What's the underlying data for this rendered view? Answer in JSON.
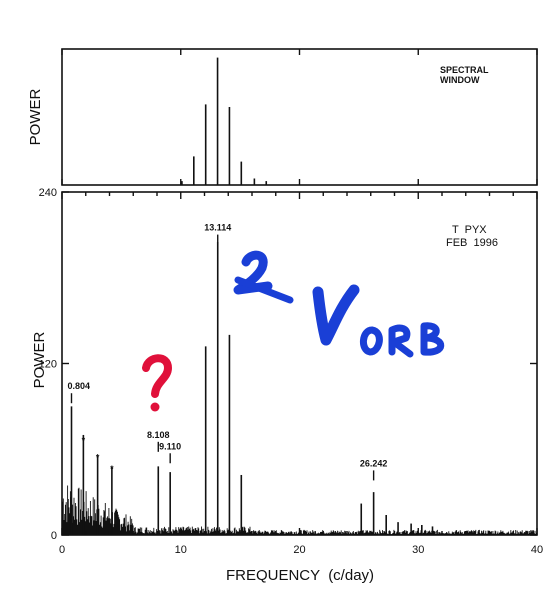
{
  "chart_data": [
    {
      "type": "line",
      "panel": "spectral-window",
      "ylabel": "POWER",
      "annotation": "SPECTRAL\nWINDOW",
      "xlim": [
        0,
        40
      ],
      "spikes": [
        {
          "x": 11.1,
          "y": 0.22
        },
        {
          "x": 12.1,
          "y": 0.62
        },
        {
          "x": 13.1,
          "y": 0.98
        },
        {
          "x": 14.1,
          "y": 0.6
        },
        {
          "x": 15.1,
          "y": 0.18
        },
        {
          "x": 16.2,
          "y": 0.05
        },
        {
          "x": 17.2,
          "y": 0.03
        },
        {
          "x": 10.1,
          "y": 0.03
        }
      ]
    },
    {
      "type": "line",
      "panel": "power-spectrum",
      "xlabel": "FREQUENCY  (c/day)",
      "ylabel": "POWER",
      "xlim": [
        0,
        40
      ],
      "ylim": [
        0,
        240
      ],
      "xticks": [
        "0",
        "10",
        "20",
        "30",
        "40"
      ],
      "yticks": [
        "0",
        "120",
        "240"
      ],
      "annotation": [
        "T  PYX",
        "FEB  1996"
      ],
      "spikes": [
        {
          "x": 0.8,
          "y": 90
        },
        {
          "x": 1.8,
          "y": 70
        },
        {
          "x": 3.0,
          "y": 55
        },
        {
          "x": 4.2,
          "y": 48
        },
        {
          "x": 8.108,
          "y": 48
        },
        {
          "x": 9.11,
          "y": 44
        },
        {
          "x": 12.1,
          "y": 132
        },
        {
          "x": 13.114,
          "y": 205
        },
        {
          "x": 14.1,
          "y": 140
        },
        {
          "x": 15.1,
          "y": 42
        },
        {
          "x": 25.2,
          "y": 22
        },
        {
          "x": 26.242,
          "y": 30
        },
        {
          "x": 27.3,
          "y": 14
        },
        {
          "x": 28.3,
          "y": 9
        },
        {
          "x": 29.4,
          "y": 8
        },
        {
          "x": 30.3,
          "y": 7
        },
        {
          "x": 31.2,
          "y": 6
        }
      ],
      "peak_labels": [
        {
          "x": 0.8,
          "y": 102,
          "text": "0.804"
        },
        {
          "x": 8.108,
          "y": 68,
          "text": "8.108"
        },
        {
          "x": 9.11,
          "y": 60,
          "text": "9.110"
        },
        {
          "x": 13.114,
          "y": 213,
          "text": "13.114"
        },
        {
          "x": 26.242,
          "y": 48,
          "text": "26.242"
        }
      ],
      "star_marks": [
        {
          "x": 1.8,
          "y": 64
        },
        {
          "x": 3.0,
          "y": 52
        },
        {
          "x": 4.2,
          "y": 44
        }
      ]
    }
  ],
  "handwriting": {
    "blue": "2 Vorb",
    "red": "?",
    "blue_color": "#1a3fd6",
    "red_color": "#e0103a"
  }
}
